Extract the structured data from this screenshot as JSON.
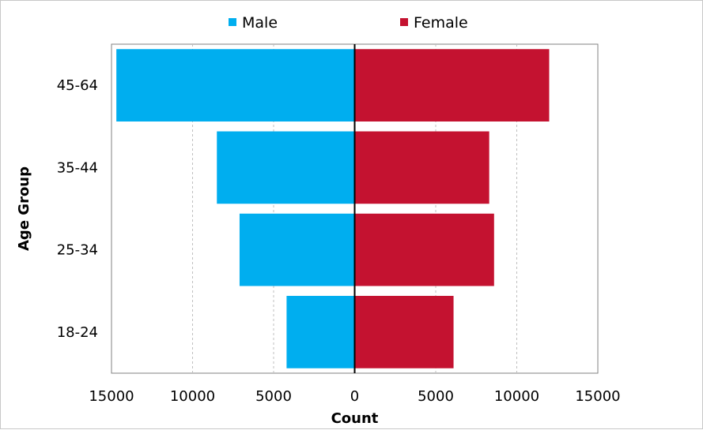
{
  "chart_data": {
    "type": "bar",
    "orientation": "horizontal",
    "variant": "population-pyramid",
    "categories": [
      "18-24",
      "25-34",
      "35-44",
      "45-64"
    ],
    "series": [
      {
        "name": "Male",
        "values": [
          4200,
          7100,
          8500,
          14700
        ],
        "color": "#00AEEF",
        "direction": "left"
      },
      {
        "name": "Female",
        "values": [
          6100,
          8600,
          8300,
          12000
        ],
        "color": "#C41230",
        "direction": "right"
      }
    ],
    "xlabel": "Count",
    "ylabel": "Age Group",
    "xlim": [
      -15000,
      15000
    ],
    "xticks": [
      -15000,
      -10000,
      -5000,
      0,
      5000,
      10000,
      15000
    ],
    "xtick_labels": [
      "15000",
      "10000",
      "5000",
      "0",
      "5000",
      "10000",
      "15000"
    ],
    "grid": "vertical dashed",
    "legend_position": "top-center"
  }
}
